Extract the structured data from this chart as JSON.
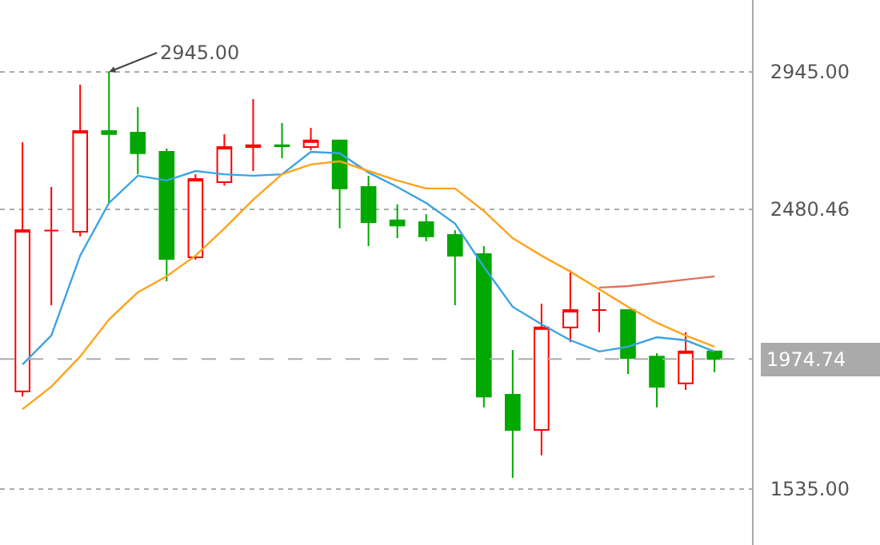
{
  "chart_data": {
    "type": "candlestick",
    "categories": [
      null,
      null,
      null,
      null,
      null,
      null,
      null,
      null,
      null,
      null,
      null,
      null,
      null,
      null,
      null,
      null,
      null,
      null,
      null,
      null,
      null,
      null,
      null,
      null,
      null
    ],
    "ohlc": [
      [
        1865,
        2707,
        1848,
        2410
      ],
      [
        2409,
        2556,
        2156,
        2409
      ],
      [
        2405,
        2902,
        2389,
        2745
      ],
      [
        2745,
        2945,
        2502,
        2735
      ],
      [
        2740,
        2826,
        2599,
        2670
      ],
      [
        2675,
        2686,
        2237,
        2313
      ],
      [
        2318,
        2599,
        2310,
        2583
      ],
      [
        2572,
        2734,
        2561,
        2691
      ],
      [
        2691,
        2853,
        2610,
        2697
      ],
      [
        2697,
        2772,
        2653,
        2694
      ],
      [
        2691,
        2756,
        2680,
        2713
      ],
      [
        2713,
        2713,
        2416,
        2551
      ],
      [
        2556,
        2594,
        2356,
        2437
      ],
      [
        2443,
        2497,
        2383,
        2426
      ],
      [
        2437,
        2464,
        2372,
        2389
      ],
      [
        2394,
        2410,
        2156,
        2324
      ],
      [
        2329,
        2356,
        1811,
        1848
      ],
      [
        1854,
        2005,
        1573,
        1735
      ],
      [
        1735,
        2162,
        1649,
        2081
      ],
      [
        2081,
        2275,
        2032,
        2140
      ],
      [
        2140,
        2200,
        2065,
        2140
      ],
      [
        2140,
        2140,
        1924,
        1978
      ],
      [
        1983,
        1994,
        1811,
        1881
      ],
      [
        1892,
        2065,
        1870,
        2000
      ],
      [
        2000,
        2000,
        1930,
        1974.74
      ]
    ],
    "colors": [
      "#ff0000",
      "#ff0000",
      "#ff0000",
      "#00a800",
      "#00a800",
      "#00a800",
      "#ff0000",
      "#ff0000",
      "#ff0000",
      "#00a800",
      "#ff0000",
      "#00a800",
      "#00a800",
      "#00a800",
      "#00a800",
      "#00a800",
      "#00a800",
      "#00a800",
      "#ff0000",
      "#ff0000",
      "#ff0000",
      "#00a800",
      "#00a800",
      "#ff0000",
      "#00a800"
    ],
    "series": [
      {
        "type": "line",
        "color": "#3aa3e3",
        "values": [
          1956,
          2054,
          2324,
          2502,
          2594,
          2578,
          2610,
          2599,
          2594,
          2599,
          2675,
          2670,
          2605,
          2556,
          2502,
          2432,
          2286,
          2151,
          2092,
          2038,
          2000,
          2016,
          2048,
          2038,
          2000
        ]
      },
      {
        "type": "line",
        "color": "#ffa31a",
        "values": [
          1805,
          1881,
          1983,
          2108,
          2200,
          2254,
          2324,
          2416,
          2513,
          2599,
          2632,
          2643,
          2610,
          2578,
          2551,
          2551,
          2475,
          2383,
          2324,
          2270,
          2210,
          2151,
          2097,
          2054,
          2016
        ]
      },
      {
        "type": "line",
        "color": "#e0735a",
        "values": [
          null,
          null,
          null,
          null,
          null,
          null,
          null,
          null,
          null,
          null,
          null,
          null,
          null,
          null,
          null,
          null,
          null,
          null,
          null,
          null,
          2216,
          2221,
          2232,
          2243,
          2254
        ]
      }
    ],
    "ylim": [
      1346,
      3188
    ],
    "yticks": [
      {
        "value": 2945,
        "label": "2945.00"
      },
      {
        "value": 2480.46,
        "label": "2480.46"
      },
      {
        "value": 1535,
        "label": "1535.00"
      }
    ],
    "ref_lines": [
      {
        "axis": "y",
        "value": 1974.74,
        "label": "1974.74",
        "color": "#aaaaaa",
        "line_style": "dashed"
      }
    ],
    "annotations": [
      "2945.00"
    ],
    "grid": "y",
    "tick_labels": "y",
    "marker": "none",
    "line_style": "solid"
  }
}
